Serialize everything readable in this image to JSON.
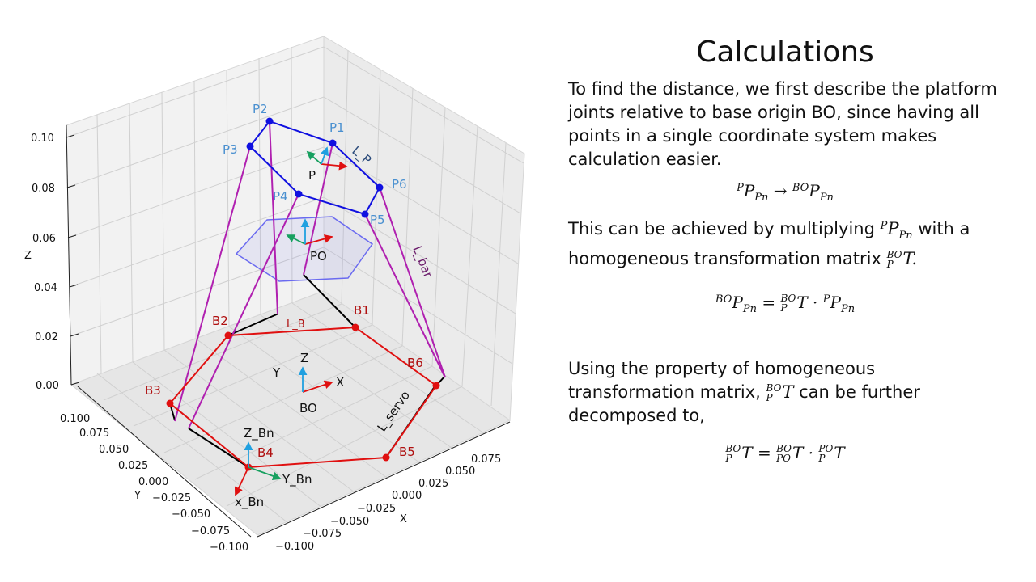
{
  "diagram": {
    "z_axis_label": "Z",
    "y_axis_label": "Y",
    "x_axis_label": "X",
    "z_ticks": [
      "0.10",
      "0.08",
      "0.06",
      "0.04",
      "0.02",
      "0.00"
    ],
    "y_ticks": [
      "0.100",
      "0.075",
      "0.050",
      "0.025",
      "0.000",
      "−0.025",
      "−0.050",
      "−0.075",
      "−0.100"
    ],
    "x_ticks": [
      "0.075",
      "0.050",
      "0.025",
      "0.000",
      "−0.025",
      "−0.050",
      "−0.075",
      "−0.100"
    ],
    "platform_points": [
      "P1",
      "P2",
      "P3",
      "P4",
      "P5",
      "P6"
    ],
    "base_points": [
      "B1",
      "B2",
      "B3",
      "B4",
      "B5",
      "B6"
    ],
    "frame_labels": {
      "platform": "P",
      "platform_origin": "PO",
      "base_origin": "BO",
      "base_z": "Z",
      "base_y": "Y",
      "base_x": "X",
      "bn_z": "Z_Bn",
      "bn_y": "Y_Bn",
      "bn_x": "x_Bn"
    },
    "length_labels": {
      "l_b": "L_B",
      "l_p": "L_P",
      "l_bar": "L_bar",
      "l_servo": "L_servo"
    },
    "colors": {
      "platform": "#1010e0",
      "base": "#e01010",
      "legs": "#b020b0",
      "servo": "#000000",
      "hexagon": "#6a6af0",
      "frame_x": "#e01010",
      "frame_y": "#18a060",
      "frame_z": "#20a0e0"
    }
  },
  "panel": {
    "title": "Calculations",
    "para1": "To find the distance, we first describe the platform joints relative to base origin BO, since having all points in a single coordinate system makes calculation easier.",
    "para2_before": "This can be achieved by multiplying",
    "para2_mid": "with a homogeneous transformation matrix",
    "para3_before": "Using the property of homogeneous transformation matrix,",
    "para3_after": "can be further decomposed to,",
    "math": {
      "P": "P",
      "BO": "BO",
      "PO": "PO",
      "Pn": "Pn",
      "T": "T",
      "arrow": "→",
      "eq": "=",
      "dot": "·",
      "end": "."
    }
  }
}
